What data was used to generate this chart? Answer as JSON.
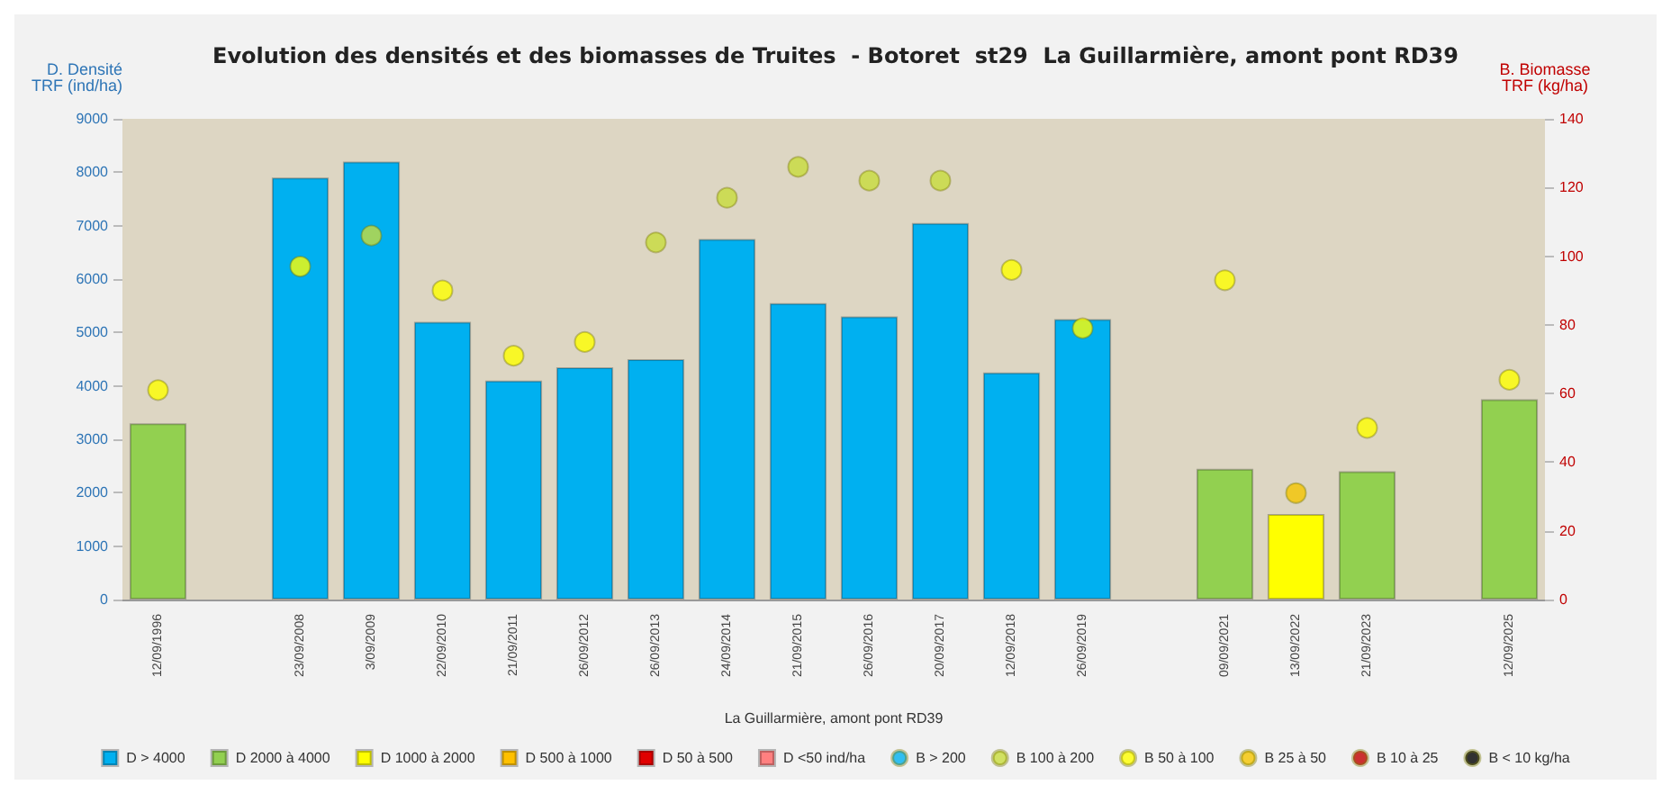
{
  "chart_data": {
    "type": "bar",
    "title": "Evolution des densités et des biomasses de Truites  - Botoret  st29  La Guillarmière, amont pont RD39",
    "xlabel": "La Guillarmière, amont pont RD39",
    "ylabel": "D. Densité\nTRF (ind/ha)",
    "y2label": "B. Biomasse\nTRF (kg/ha)",
    "categories": [
      "12/09/1996",
      null,
      "23/09/2008",
      "3/09/2009",
      "22/09/2010",
      "21/09/2011",
      "26/09/2012",
      "26/09/2013",
      "24/09/2014",
      "21/09/2015",
      "26/09/2016",
      "20/09/2017",
      "12/09/2018",
      "26/09/2019",
      null,
      "09/09/2021",
      "13/09/2022",
      "21/09/2023",
      null,
      "12/09/2025"
    ],
    "stacked": true,
    "series": [
      {
        "name": "D > 4000",
        "color": "#00b0f0",
        "values": [
          null,
          null,
          7900,
          8200,
          5200,
          4100,
          4350,
          4500,
          6750,
          5550,
          5300,
          7050,
          4250,
          5250,
          null,
          null,
          null,
          null,
          null,
          null
        ]
      },
      {
        "name": "D 2000 à 4000",
        "color": "#92d050",
        "values": [
          3300,
          null,
          null,
          null,
          null,
          null,
          null,
          null,
          null,
          null,
          null,
          null,
          null,
          null,
          null,
          2450,
          null,
          2400,
          null,
          3750
        ]
      },
      {
        "name": "D 1000 à 2000",
        "color": "#ffff00",
        "values": [
          null,
          null,
          null,
          null,
          null,
          null,
          null,
          null,
          null,
          null,
          null,
          null,
          null,
          null,
          null,
          null,
          1600,
          null,
          null,
          null
        ]
      },
      {
        "name": "D 500 à 1000",
        "color": "#ffc000",
        "values": [
          null,
          null,
          null,
          null,
          null,
          null,
          null,
          null,
          null,
          null,
          null,
          null,
          null,
          null,
          null,
          null,
          null,
          null,
          null,
          null
        ]
      },
      {
        "name": "D 50 à 500",
        "color": "#e00000",
        "values": [
          null,
          null,
          null,
          null,
          null,
          null,
          null,
          null,
          null,
          null,
          null,
          null,
          null,
          null,
          null,
          null,
          null,
          null,
          null,
          null
        ]
      },
      {
        "name": "D <50 ind/ha",
        "color": "#ff8080",
        "values": [
          null,
          null,
          null,
          null,
          null,
          null,
          null,
          null,
          null,
          null,
          null,
          null,
          null,
          null,
          null,
          null,
          null,
          null,
          null,
          null
        ]
      },
      {
        "name": "B > 200",
        "type": "scatter",
        "axis": "y2",
        "color": "#00b0f0",
        "values": [
          null,
          null,
          null,
          null,
          null,
          null,
          null,
          null,
          null,
          null,
          null,
          null,
          null,
          null,
          null,
          null,
          null,
          null,
          null,
          null
        ]
      },
      {
        "name": "B 100 à 200",
        "type": "scatter",
        "axis": "y2",
        "color": "#c8dc3c",
        "values": [
          null,
          null,
          null,
          106,
          null,
          null,
          null,
          104,
          117,
          126,
          122,
          122,
          null,
          null,
          null,
          null,
          null,
          null,
          null,
          null
        ]
      },
      {
        "name": "B 50 à 100",
        "type": "scatter",
        "axis": "y2",
        "color": "#ffff00",
        "values": [
          61,
          null,
          97,
          null,
          90,
          71,
          75,
          null,
          null,
          null,
          null,
          null,
          96,
          79,
          null,
          93,
          null,
          50,
          null,
          64
        ]
      },
      {
        "name": "B 25 à 50",
        "type": "scatter",
        "axis": "y2",
        "color": "#f5c400",
        "values": [
          null,
          null,
          null,
          null,
          null,
          null,
          null,
          null,
          null,
          null,
          null,
          null,
          null,
          null,
          null,
          null,
          31,
          null,
          null,
          null
        ]
      },
      {
        "name": "B 10 à 25",
        "type": "scatter",
        "axis": "y2",
        "color": "#c00000",
        "values": [
          null,
          null,
          null,
          null,
          null,
          null,
          null,
          null,
          null,
          null,
          null,
          null,
          null,
          null,
          null,
          null,
          null,
          null,
          null,
          null
        ]
      },
      {
        "name": "B < 10 kg/ha",
        "type": "scatter",
        "axis": "y2",
        "color": "#000000",
        "values": [
          null,
          null,
          null,
          null,
          null,
          null,
          null,
          null,
          null,
          null,
          null,
          null,
          null,
          null,
          null,
          null,
          null,
          null,
          null,
          null
        ]
      }
    ],
    "ylim": [
      0,
      9000
    ],
    "yticks": [
      0,
      1000,
      2000,
      3000,
      4000,
      5000,
      6000,
      7000,
      8000,
      9000
    ],
    "y2lim": [
      0,
      140
    ],
    "y2ticks": [
      0,
      20,
      40,
      60,
      80,
      100,
      120,
      140
    ],
    "marker": "circle",
    "legend": "bottom",
    "grid": false
  }
}
